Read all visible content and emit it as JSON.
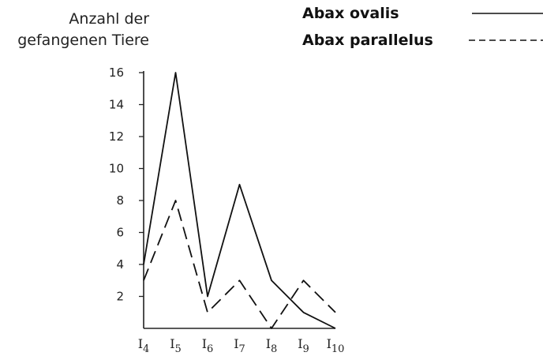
{
  "chart_data": {
    "type": "line",
    "ylabel": "Anzahl der gefangenen Tiere",
    "ylabel_lines": [
      "Anzahl der",
      "gefangenen Tiere"
    ],
    "xlabel": "",
    "categories": [
      "I4",
      "I5",
      "I6",
      "I7",
      "I8",
      "I9",
      "I10"
    ],
    "category_labels": [
      {
        "base": "I",
        "sub": "4"
      },
      {
        "base": "I",
        "sub": "5"
      },
      {
        "base": "I",
        "sub": "6"
      },
      {
        "base": "I",
        "sub": "7"
      },
      {
        "base": "I",
        "sub": "8"
      },
      {
        "base": "I",
        "sub": "9"
      },
      {
        "base": "I",
        "sub": "10"
      }
    ],
    "series": [
      {
        "name": "Abax ovalis",
        "line_style": "solid",
        "values": [
          4,
          16,
          2,
          9,
          3,
          1,
          0
        ]
      },
      {
        "name": "Abax parallelus",
        "line_style": "dashed",
        "values": [
          3,
          8,
          1,
          3,
          0,
          3,
          1
        ]
      }
    ],
    "ylim": [
      0,
      16
    ],
    "yticks": [
      2,
      4,
      6,
      8,
      10,
      12,
      14,
      16
    ],
    "grid": false,
    "legend_position": "top-right",
    "line_color": "#111111"
  }
}
